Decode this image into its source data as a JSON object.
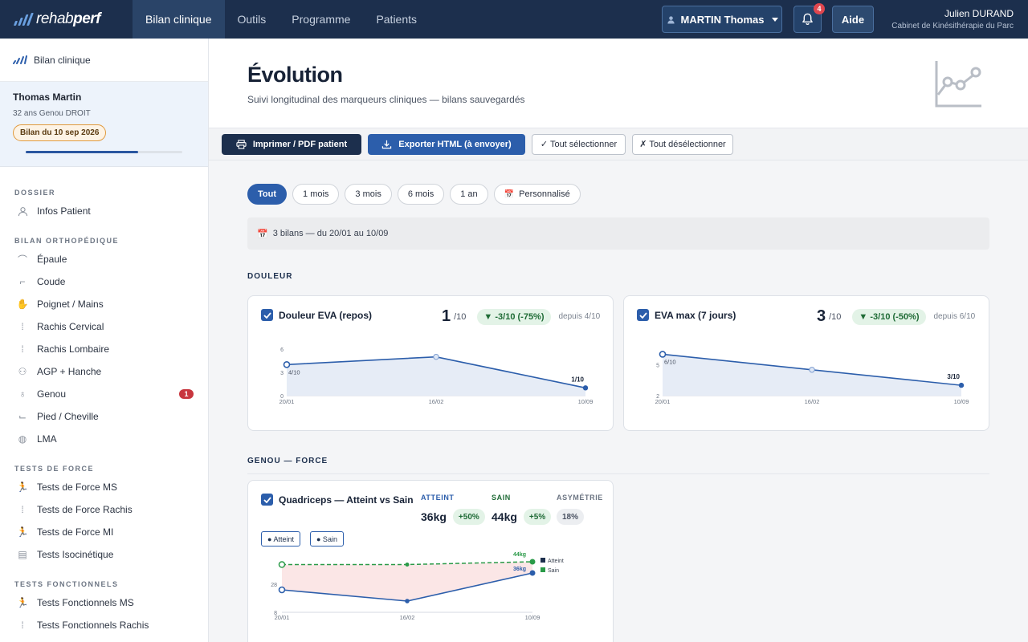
{
  "topbar": {
    "logo_a": "rehab",
    "logo_b": "perf",
    "tabs": [
      {
        "label": "Bilan clinique",
        "active": true
      },
      {
        "label": "Outils"
      },
      {
        "label": "Programme"
      },
      {
        "label": "Patients"
      }
    ],
    "patient_selector": "MARTIN Thomas",
    "notifications_count": "4",
    "help_label": "Aide",
    "user_name": "Julien DURAND",
    "user_cabinet": "Cabinet de Kinésithérapie du Parc"
  },
  "sidebar": {
    "header": "Bilan clinique",
    "patient": {
      "name": "Thomas Martin",
      "info": "32 ans Genou DROIT",
      "bilan": "Bilan du 10 sep 2026",
      "progress": 0.72
    },
    "sections": {
      "dossier": "DOSSIER",
      "ortho": "BILAN ORTHOPÉDIQUE",
      "force": "TESTS DE FORCE",
      "fonc": "TESTS FONCTIONNELS"
    },
    "items": {
      "infos": "Infos Patient",
      "epaule": "Épaule",
      "coude": "Coude",
      "poignet": "Poignet / Mains",
      "cervical": "Rachis Cervical",
      "lombaire": "Rachis Lombaire",
      "hanche": "AGP + Hanche",
      "genou": "Genou",
      "genou_count": "1",
      "pied": "Pied / Cheville",
      "lma": "LMA",
      "force_ms": "Tests de Force MS",
      "force_rachis": "Tests de Force Rachis",
      "force_mi": "Tests de Force MI",
      "iso": "Tests Isocinétique",
      "fonc_ms": "Tests Fonctionnels MS",
      "fonc_rachis": "Tests Fonctionnels Rachis"
    }
  },
  "main": {
    "title": "Évolution",
    "subtitle": "Suivi longitudinal des marqueurs cliniques — bilans sauvegardés",
    "toolbar": {
      "print": "Imprimer / PDF patient",
      "export": "Exporter HTML (à envoyer)",
      "select_all": "✓ Tout sélectionner",
      "deselect_all": "✗ Tout désélectionner"
    },
    "filters": [
      "Tout",
      "1 mois",
      "3 mois",
      "6 mois",
      "1 an"
    ],
    "filter_custom": "Personnalisé",
    "range": "3 bilans — du 20/01 au 10/09",
    "section_douleur": "DOULEUR",
    "section_genou": "GENOU — FORCE"
  },
  "cards": {
    "eva_repos": {
      "title": "Douleur EVA (repos)",
      "value": "1",
      "unit": "/10",
      "delta": "▼ -3/10 (-75%)",
      "since": "depuis 4/10"
    },
    "eva_max": {
      "title": "EVA max (7 jours)",
      "value": "3",
      "unit": "/10",
      "delta": "▼ -3/10 (-50%)",
      "since": "depuis 6/10"
    },
    "quadriceps": {
      "title": "Quadriceps — Atteint vs Sain",
      "atteint_label": "ATTEINT",
      "atteint_value": "36kg",
      "atteint_delta": "+50%",
      "sain_label": "SAIN",
      "sain_value": "44kg",
      "sain_delta": "+5%",
      "asym_label": "ASYMÉTRIE",
      "asym_value": "18%",
      "legend_atteint": "● Atteint",
      "legend_sain": "● Sain"
    }
  },
  "colors": {
    "primary": "#1c2f4d",
    "accent": "#2c5eab",
    "success": "#2a9a48",
    "alert": "#c8363e"
  },
  "chart_data": [
    {
      "type": "area",
      "title": "Douleur EVA (repos)",
      "x": [
        "20/01",
        "16/02",
        "10/09"
      ],
      "y": [
        4,
        5,
        1
      ],
      "yticks": [
        "0",
        "3",
        "6"
      ],
      "ylim": [
        0,
        6
      ],
      "annotations": [
        "4/10",
        "1/10"
      ]
    },
    {
      "type": "area",
      "title": "EVA max (7 jours)",
      "x": [
        "20/01",
        "16/02",
        "10/09"
      ],
      "y": [
        6,
        4.5,
        3
      ],
      "yticks": [
        "2",
        "5"
      ],
      "ylim": [
        2,
        6.5
      ],
      "annotations": [
        "6/10",
        "3/10"
      ]
    },
    {
      "type": "line",
      "title": "Quadriceps — Atteint vs Sain",
      "x": [
        "20/01",
        "16/02",
        "10/09"
      ],
      "yticks": [
        "8",
        "28"
      ],
      "ylim": [
        8,
        48
      ],
      "series": [
        {
          "name": "Atteint",
          "values": [
            24,
            16,
            36
          ],
          "end_label": "36kg"
        },
        {
          "name": "Sain",
          "values": [
            42,
            42,
            44
          ],
          "end_label": "44kg"
        }
      ]
    }
  ]
}
